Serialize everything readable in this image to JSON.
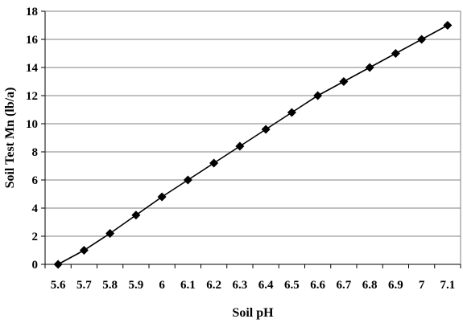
{
  "chart_data": {
    "type": "line",
    "xlabel": "Soil pH",
    "ylabel": "Soil Test Mn (lb/a)",
    "categories": [
      "5.6",
      "5.7",
      "5.8",
      "5.9",
      "6",
      "6.1",
      "6.2",
      "6.3",
      "6.4",
      "6.5",
      "6.6",
      "6.7",
      "6.8",
      "6.9",
      "7",
      "7.1"
    ],
    "series": [
      {
        "values": [
          0,
          1,
          2.2,
          3.5,
          4.8,
          6,
          7.2,
          8.4,
          9.6,
          10.8,
          12,
          13,
          14,
          15,
          16,
          17
        ]
      }
    ],
    "ylim": [
      0,
      18
    ],
    "yticks": [
      "0",
      "2",
      "4",
      "6",
      "8",
      "10",
      "12",
      "14",
      "16",
      "18"
    ],
    "grid": "horizontal",
    "marker": "diamond",
    "colors": {
      "line": "#000000",
      "marker": "#000000",
      "grid": "#808080",
      "axis": "#000000"
    }
  }
}
